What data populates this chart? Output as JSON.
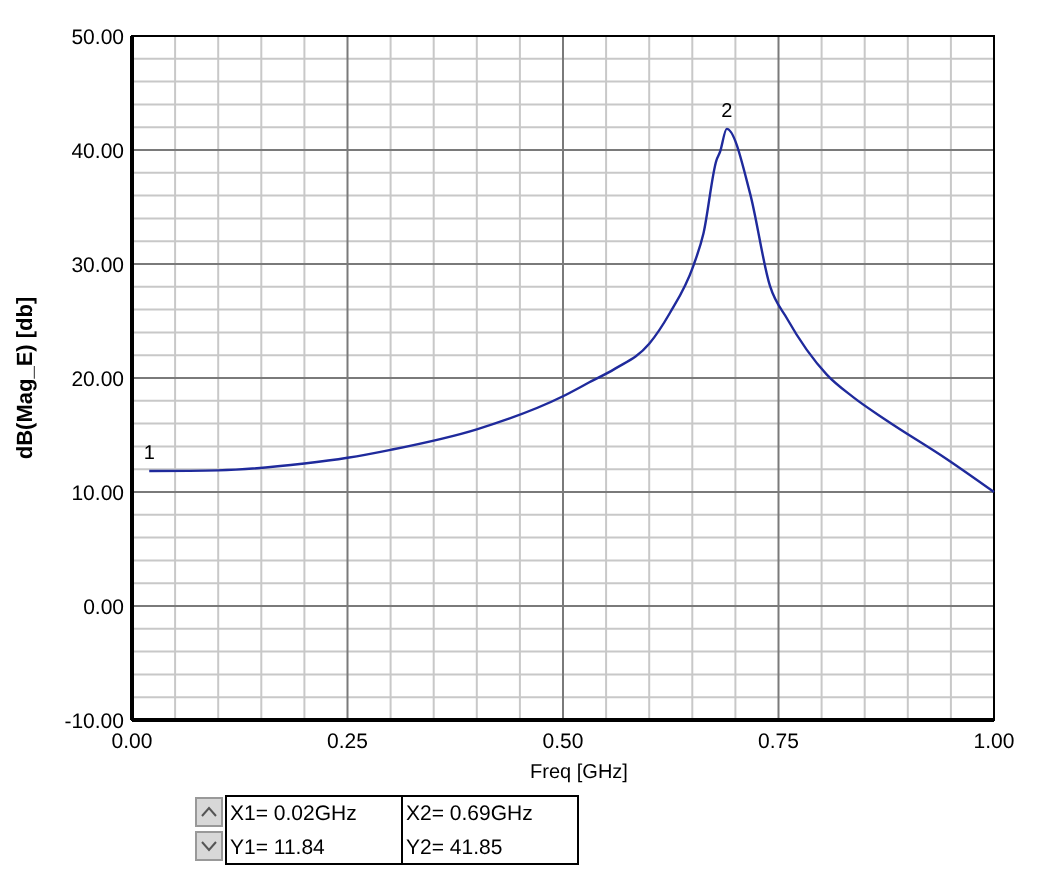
{
  "chart_data": {
    "type": "line",
    "xlabel": "Freq [GHz]",
    "ylabel": "dB(Mag_E) [db]",
    "xlim": [
      0,
      1
    ],
    "ylim": [
      -10,
      50
    ],
    "xticks": [
      {
        "value": 0,
        "label": "0.00"
      },
      {
        "value": 0.25,
        "label": "0.25"
      },
      {
        "value": 0.5,
        "label": "0.50"
      },
      {
        "value": 0.75,
        "label": "0.75"
      },
      {
        "value": 1,
        "label": "1.00"
      }
    ],
    "yticks": [
      {
        "value": -10,
        "label": "-10.00"
      },
      {
        "value": 0,
        "label": "0.00"
      },
      {
        "value": 10,
        "label": "10.00"
      },
      {
        "value": 20,
        "label": "20.00"
      },
      {
        "value": 30,
        "label": "30.00"
      },
      {
        "value": 40,
        "label": "40.00"
      },
      {
        "value": 50,
        "label": "50.00"
      }
    ],
    "grid": true,
    "marker": "none",
    "line_style": "solid",
    "series": [
      {
        "color": "#1f2a9c",
        "x": [
          0.02,
          0.1,
          0.2,
          0.25,
          0.3,
          0.4,
          0.5,
          0.53,
          0.56,
          0.6,
          0.624,
          0.651,
          0.663,
          0.678,
          0.682,
          0.69,
          0.717,
          0.74,
          0.76,
          0.806,
          0.837,
          0.875,
          0.945,
          1.0
        ],
        "values": [
          11.84,
          11.9,
          12.5,
          13.0,
          13.7,
          15.5,
          18.4,
          19.6,
          20.8,
          23.0,
          25.7,
          29.8,
          32.7,
          39.1,
          39.8,
          41.85,
          36.2,
          28.1,
          25.2,
          20.3,
          18.3,
          16.3,
          12.9,
          10.0
        ]
      }
    ],
    "annotations": [
      {
        "text": "1",
        "x": 0.02,
        "y": 11.84
      },
      {
        "text": "2",
        "x": 0.69,
        "y": 41.85
      },
      "X1= 0.02GHz",
      "Y1= 11.84",
      "X2= 0.69GHz",
      "Y2= 41.85"
    ]
  }
}
